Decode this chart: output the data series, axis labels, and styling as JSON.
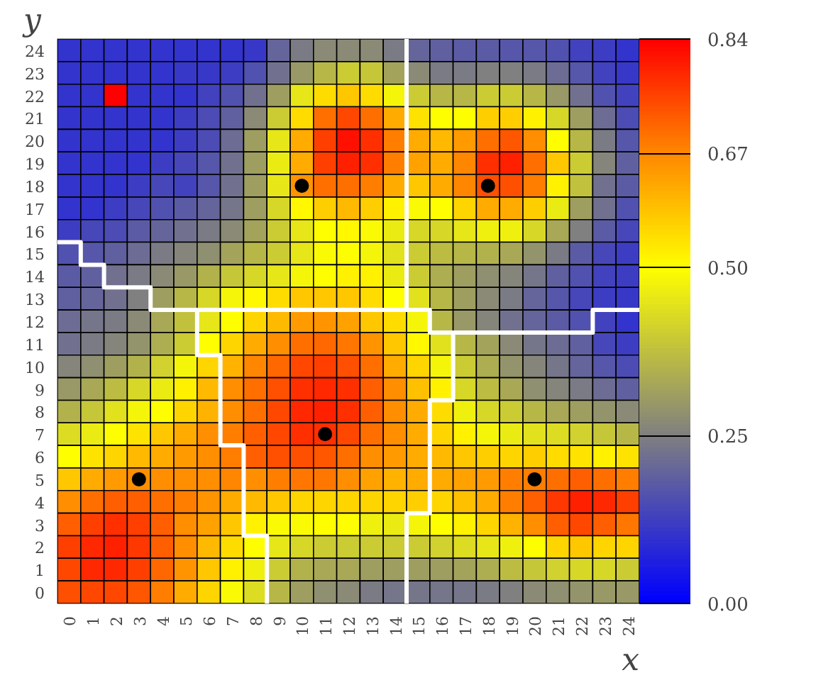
{
  "chart_data": {
    "type": "heatmap",
    "xlabel": "x",
    "ylabel": "y",
    "x": [
      0,
      1,
      2,
      3,
      4,
      5,
      6,
      7,
      8,
      9,
      10,
      11,
      12,
      13,
      14,
      15,
      16,
      17,
      18,
      19,
      20,
      21,
      22,
      23,
      24
    ],
    "xlim": [
      -0.5,
      24.5
    ],
    "xticks": [
      0,
      1,
      2,
      3,
      4,
      5,
      6,
      7,
      8,
      9,
      10,
      11,
      12,
      13,
      14,
      15,
      16,
      17,
      18,
      19,
      20,
      21,
      22,
      23,
      24
    ],
    "ylim": [
      -0.5,
      24.5
    ],
    "yticks": [
      0,
      1,
      2,
      3,
      4,
      5,
      6,
      7,
      8,
      9,
      10,
      11,
      12,
      13,
      14,
      15,
      16,
      17,
      18,
      19,
      20,
      21,
      22,
      23,
      24
    ],
    "cells": [
      [
        0.1,
        0.1,
        0.1,
        0.1,
        0.1,
        0.1,
        0.1,
        0.1,
        0.11,
        0.2,
        0.24,
        0.27,
        0.27,
        0.27,
        0.24,
        0.2,
        0.19,
        0.18,
        0.18,
        0.17,
        0.17,
        0.16,
        0.13,
        0.12,
        0.1
      ],
      [
        0.1,
        0.1,
        0.1,
        0.1,
        0.1,
        0.11,
        0.11,
        0.12,
        0.16,
        0.22,
        0.3,
        0.36,
        0.4,
        0.39,
        0.32,
        0.27,
        0.24,
        0.24,
        0.25,
        0.25,
        0.24,
        0.21,
        0.17,
        0.13,
        0.11
      ],
      [
        0.1,
        0.1,
        0.84,
        0.1,
        0.1,
        0.1,
        0.13,
        0.16,
        0.22,
        0.31,
        0.45,
        0.55,
        0.58,
        0.55,
        0.48,
        0.4,
        0.36,
        0.36,
        0.4,
        0.4,
        0.36,
        0.3,
        0.22,
        0.16,
        0.13
      ],
      [
        0.1,
        0.1,
        0.1,
        0.1,
        0.1,
        0.12,
        0.15,
        0.19,
        0.27,
        0.4,
        0.55,
        0.7,
        0.75,
        0.7,
        0.62,
        0.54,
        0.5,
        0.5,
        0.57,
        0.57,
        0.52,
        0.42,
        0.31,
        0.21,
        0.15
      ],
      [
        0.1,
        0.1,
        0.1,
        0.1,
        0.1,
        0.12,
        0.15,
        0.21,
        0.31,
        0.45,
        0.62,
        0.76,
        0.82,
        0.78,
        0.68,
        0.62,
        0.6,
        0.64,
        0.7,
        0.73,
        0.66,
        0.5,
        0.36,
        0.24,
        0.17
      ],
      [
        0.1,
        0.1,
        0.1,
        0.1,
        0.12,
        0.14,
        0.17,
        0.22,
        0.31,
        0.46,
        0.62,
        0.76,
        0.8,
        0.78,
        0.68,
        0.63,
        0.62,
        0.67,
        0.78,
        0.8,
        0.7,
        0.58,
        0.4,
        0.26,
        0.19
      ],
      [
        0.1,
        0.1,
        0.1,
        0.12,
        0.14,
        0.13,
        0.17,
        0.22,
        0.31,
        0.45,
        0.65,
        0.7,
        0.7,
        0.68,
        0.62,
        0.58,
        0.62,
        0.67,
        0.74,
        0.74,
        0.68,
        0.52,
        0.38,
        0.22,
        0.18
      ],
      [
        0.1,
        0.1,
        0.12,
        0.14,
        0.16,
        0.18,
        0.2,
        0.23,
        0.31,
        0.42,
        0.51,
        0.57,
        0.6,
        0.57,
        0.52,
        0.49,
        0.5,
        0.56,
        0.62,
        0.62,
        0.57,
        0.46,
        0.31,
        0.22,
        0.16
      ],
      [
        0.12,
        0.14,
        0.15,
        0.18,
        0.2,
        0.22,
        0.24,
        0.27,
        0.32,
        0.4,
        0.45,
        0.5,
        0.51,
        0.49,
        0.46,
        0.42,
        0.42,
        0.45,
        0.47,
        0.47,
        0.42,
        0.33,
        0.25,
        0.18,
        0.14
      ],
      [
        0.16,
        0.17,
        0.19,
        0.21,
        0.24,
        0.26,
        0.28,
        0.32,
        0.36,
        0.4,
        0.45,
        0.49,
        0.5,
        0.48,
        0.44,
        0.4,
        0.37,
        0.36,
        0.35,
        0.33,
        0.29,
        0.24,
        0.18,
        0.14,
        0.12
      ],
      [
        0.18,
        0.19,
        0.22,
        0.24,
        0.27,
        0.3,
        0.35,
        0.39,
        0.42,
        0.45,
        0.48,
        0.5,
        0.52,
        0.52,
        0.46,
        0.4,
        0.34,
        0.31,
        0.28,
        0.26,
        0.23,
        0.19,
        0.16,
        0.13,
        0.12
      ],
      [
        0.19,
        0.2,
        0.22,
        0.25,
        0.31,
        0.36,
        0.42,
        0.48,
        0.51,
        0.55,
        0.58,
        0.58,
        0.58,
        0.55,
        0.5,
        0.44,
        0.36,
        0.31,
        0.27,
        0.24,
        0.2,
        0.17,
        0.14,
        0.12,
        0.11
      ],
      [
        0.21,
        0.23,
        0.24,
        0.27,
        0.33,
        0.38,
        0.45,
        0.5,
        0.56,
        0.6,
        0.64,
        0.65,
        0.63,
        0.58,
        0.55,
        0.48,
        0.36,
        0.3,
        0.26,
        0.22,
        0.2,
        0.18,
        0.16,
        0.13,
        0.1
      ],
      [
        0.22,
        0.24,
        0.26,
        0.29,
        0.34,
        0.4,
        0.5,
        0.56,
        0.62,
        0.66,
        0.7,
        0.71,
        0.69,
        0.65,
        0.58,
        0.51,
        0.44,
        0.36,
        0.32,
        0.27,
        0.23,
        0.21,
        0.19,
        0.14,
        0.12
      ],
      [
        0.26,
        0.28,
        0.31,
        0.35,
        0.41,
        0.48,
        0.56,
        0.61,
        0.67,
        0.71,
        0.75,
        0.76,
        0.74,
        0.7,
        0.62,
        0.56,
        0.48,
        0.4,
        0.34,
        0.29,
        0.26,
        0.23,
        0.2,
        0.17,
        0.15
      ],
      [
        0.3,
        0.33,
        0.37,
        0.42,
        0.46,
        0.52,
        0.6,
        0.66,
        0.7,
        0.74,
        0.78,
        0.79,
        0.78,
        0.72,
        0.66,
        0.59,
        0.52,
        0.42,
        0.37,
        0.33,
        0.28,
        0.26,
        0.24,
        0.21,
        0.19
      ],
      [
        0.35,
        0.39,
        0.44,
        0.48,
        0.5,
        0.56,
        0.61,
        0.66,
        0.7,
        0.75,
        0.79,
        0.8,
        0.78,
        0.72,
        0.66,
        0.62,
        0.55,
        0.47,
        0.42,
        0.4,
        0.36,
        0.33,
        0.31,
        0.29,
        0.27
      ],
      [
        0.43,
        0.46,
        0.5,
        0.54,
        0.58,
        0.62,
        0.66,
        0.68,
        0.72,
        0.75,
        0.78,
        0.78,
        0.75,
        0.7,
        0.66,
        0.62,
        0.56,
        0.52,
        0.48,
        0.46,
        0.44,
        0.43,
        0.41,
        0.39,
        0.36
      ],
      [
        0.5,
        0.54,
        0.56,
        0.6,
        0.62,
        0.64,
        0.66,
        0.68,
        0.72,
        0.74,
        0.74,
        0.73,
        0.7,
        0.66,
        0.64,
        0.62,
        0.6,
        0.58,
        0.57,
        0.56,
        0.57,
        0.55,
        0.54,
        0.52,
        0.54
      ],
      [
        0.58,
        0.62,
        0.64,
        0.66,
        0.66,
        0.66,
        0.66,
        0.67,
        0.66,
        0.68,
        0.69,
        0.69,
        0.66,
        0.63,
        0.61,
        0.62,
        0.62,
        0.63,
        0.64,
        0.68,
        0.68,
        0.7,
        0.72,
        0.7,
        0.68
      ],
      [
        0.66,
        0.7,
        0.72,
        0.72,
        0.7,
        0.68,
        0.65,
        0.62,
        0.6,
        0.58,
        0.56,
        0.56,
        0.56,
        0.56,
        0.56,
        0.57,
        0.56,
        0.59,
        0.62,
        0.68,
        0.72,
        0.77,
        0.8,
        0.79,
        0.76
      ],
      [
        0.72,
        0.76,
        0.78,
        0.76,
        0.72,
        0.66,
        0.63,
        0.58,
        0.52,
        0.49,
        0.49,
        0.5,
        0.5,
        0.47,
        0.46,
        0.48,
        0.5,
        0.52,
        0.56,
        0.61,
        0.66,
        0.72,
        0.75,
        0.72,
        0.69
      ],
      [
        0.76,
        0.79,
        0.8,
        0.77,
        0.72,
        0.66,
        0.6,
        0.55,
        0.5,
        0.45,
        0.42,
        0.4,
        0.4,
        0.4,
        0.4,
        0.4,
        0.41,
        0.43,
        0.45,
        0.47,
        0.5,
        0.56,
        0.58,
        0.56,
        0.56
      ],
      [
        0.75,
        0.79,
        0.79,
        0.76,
        0.71,
        0.65,
        0.58,
        0.52,
        0.47,
        0.4,
        0.35,
        0.33,
        0.33,
        0.31,
        0.31,
        0.31,
        0.31,
        0.32,
        0.34,
        0.37,
        0.39,
        0.41,
        0.42,
        0.42,
        0.4
      ],
      [
        0.74,
        0.75,
        0.75,
        0.73,
        0.68,
        0.62,
        0.56,
        0.49,
        0.43,
        0.36,
        0.31,
        0.28,
        0.27,
        0.24,
        0.23,
        0.23,
        0.23,
        0.23,
        0.24,
        0.25,
        0.27,
        0.28,
        0.29,
        0.3,
        0.3
      ]
    ],
    "clim": [
      0,
      0.84
    ],
    "cticks": [
      {
        "value": 0,
        "label": "0.00"
      },
      0.25,
      {
        "value": 0.5,
        "label": "0.50"
      },
      0.67,
      0.84
    ],
    "series": [
      {
        "type": "line",
        "color": "#ffffff",
        "x": [
          -0.5,
          0.5,
          0.5,
          1.5,
          1.5,
          3.5,
          3.5,
          15.5,
          15.5,
          22.5,
          22.5,
          24.5
        ],
        "values": [
          15.5,
          15.5,
          14.5,
          14.5,
          13.5,
          13.5,
          12.5,
          12.5,
          11.5,
          11.5,
          12.5,
          12.5
        ]
      },
      {
        "type": "line",
        "color": "#ffffff",
        "x": [
          14.5,
          14.5
        ],
        "values": [
          24.5,
          12.5
        ]
      },
      {
        "type": "line",
        "color": "#ffffff",
        "x": [
          5.5,
          5.5,
          6.5,
          6.5,
          7.5,
          7.5,
          8.5,
          8.5
        ],
        "values": [
          12.5,
          10.5,
          10.5,
          6.5,
          6.5,
          2.5,
          2.5,
          -0.5
        ]
      },
      {
        "type": "line",
        "color": "#ffffff",
        "x": [
          16.5,
          16.5,
          15.5,
          15.5,
          14.5,
          14.5
        ],
        "values": [
          11.5,
          8.5,
          8.5,
          3.5,
          3.5,
          -0.5
        ]
      },
      {
        "type": "scatter",
        "marker": "circle",
        "color": "#000000",
        "x": [
          3,
          11,
          20,
          10,
          18
        ],
        "values": [
          5,
          7,
          5,
          18,
          18
        ]
      }
    ]
  }
}
